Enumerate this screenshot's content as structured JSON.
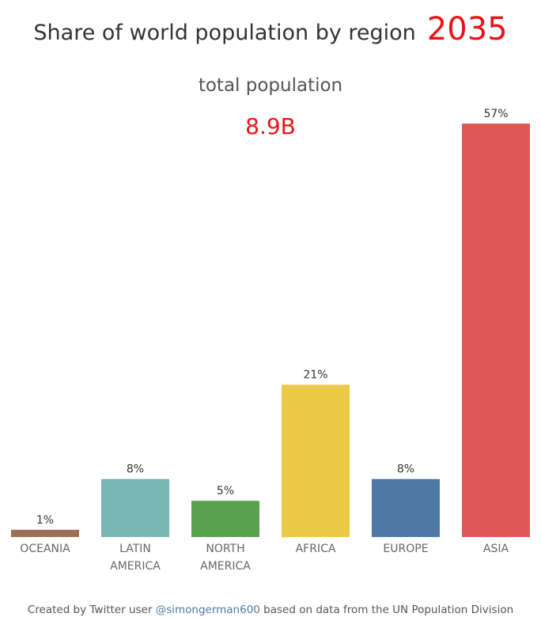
{
  "header": {
    "title": "Share of world population by region",
    "year": "2035",
    "subtitle": "total population",
    "total": "8.9B"
  },
  "chart_data": {
    "type": "bar",
    "title": "Share of world population by region",
    "categories": [
      [
        "OCEANIA"
      ],
      [
        "LATIN",
        "AMERICA"
      ],
      [
        "NORTH",
        "AMERICA"
      ],
      [
        "AFRICA"
      ],
      [
        "EUROPE"
      ],
      [
        "ASIA"
      ]
    ],
    "values": [
      1,
      8,
      5,
      21,
      8,
      57
    ],
    "value_labels": [
      "1%",
      "8%",
      "5%",
      "21%",
      "8%",
      "57%"
    ],
    "unit": "%",
    "colors": [
      "#9c7055",
      "#76b7b2",
      "#59a14f",
      "#edc948",
      "#4e79a7",
      "#e15759"
    ],
    "grid": false,
    "legend": "none"
  },
  "footer": {
    "prefix": "Created by Twitter user ",
    "handle": "@simongerman600",
    "suffix": " based on data from the UN Population Division"
  }
}
